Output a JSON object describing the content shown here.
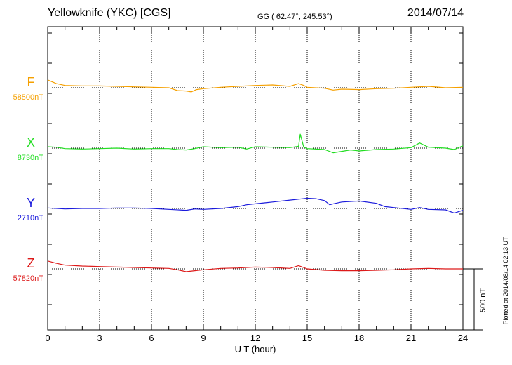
{
  "header": {
    "title": "Yellowknife (YKC)  [CGS]",
    "coords": "GG ( 62.47°, 245.53°)",
    "date": "2014/07/14"
  },
  "footer": {
    "plotted": "Plotted at 2014/08/14 02:13 UT"
  },
  "chart_data": {
    "type": "line",
    "title": "Yellowknife (YKC)  [CGS]",
    "subtitle": "GG ( 62.47°, 245.53°)",
    "date": "2014/07/14",
    "xlabel": "U T (hour)",
    "xlim": [
      0,
      24
    ],
    "xticks": [
      0,
      3,
      6,
      9,
      12,
      15,
      18,
      21,
      24
    ],
    "vertical_grid": true,
    "scale_bar": {
      "label": "500 nT",
      "value_nT": 500
    },
    "colors": {
      "F": "#f5a000",
      "X": "#22dd22",
      "Y": "#1a1adc",
      "Z": "#dd1a1a"
    },
    "series": [
      {
        "name": "F",
        "baseline_label": "58500nT",
        "baseline": 58500,
        "x": [
          0,
          0.5,
          1,
          2,
          3,
          4,
          5,
          6,
          7,
          7.5,
          8,
          8.3,
          8.6,
          9,
          10,
          11,
          12,
          13,
          14,
          14.5,
          14.8,
          15,
          16,
          16.5,
          17,
          18,
          19,
          20,
          21,
          22,
          23,
          24
        ],
        "y": [
          58585,
          58545,
          58525,
          58520,
          58520,
          58515,
          58510,
          58505,
          58500,
          58470,
          58465,
          58455,
          58480,
          58490,
          58505,
          58515,
          58525,
          58530,
          58515,
          58545,
          58525,
          58505,
          58495,
          58475,
          58485,
          58480,
          58490,
          58495,
          58505,
          58515,
          58500,
          58505
        ]
      },
      {
        "name": "X",
        "baseline_label": "8730nT",
        "baseline": 8730,
        "x": [
          0,
          0.5,
          1,
          2,
          3,
          4,
          5,
          6,
          7,
          7.5,
          8,
          8.5,
          9,
          10,
          11,
          11.5,
          12,
          13,
          14,
          14.5,
          14.6,
          14.8,
          15,
          16,
          16.5,
          17,
          17.5,
          18,
          19,
          20,
          21,
          21.5,
          22,
          23,
          23.5,
          24
        ],
        "y": [
          8745,
          8740,
          8725,
          8720,
          8725,
          8730,
          8720,
          8725,
          8725,
          8715,
          8710,
          8725,
          8745,
          8735,
          8740,
          8720,
          8745,
          8740,
          8735,
          8750,
          8880,
          8740,
          8725,
          8715,
          8680,
          8695,
          8710,
          8700,
          8715,
          8720,
          8735,
          8785,
          8740,
          8730,
          8715,
          8755
        ]
      },
      {
        "name": "Y",
        "baseline_label": "2710nT",
        "baseline": 2710,
        "x": [
          0,
          1,
          2,
          3,
          4,
          5,
          6,
          7,
          8,
          8.5,
          9,
          10,
          11,
          11.5,
          12,
          13,
          14,
          14.5,
          15,
          15.5,
          16,
          16.3,
          16.5,
          17,
          18,
          19,
          19.5,
          20,
          21,
          21.5,
          22,
          23,
          23.5,
          24
        ],
        "y": [
          2715,
          2705,
          2710,
          2710,
          2715,
          2715,
          2710,
          2700,
          2690,
          2705,
          2700,
          2710,
          2730,
          2750,
          2760,
          2780,
          2800,
          2810,
          2820,
          2815,
          2795,
          2750,
          2760,
          2780,
          2790,
          2765,
          2730,
          2720,
          2700,
          2720,
          2700,
          2695,
          2660,
          2690
        ]
      },
      {
        "name": "Z",
        "baseline_label": "57820nT",
        "baseline": 57820,
        "x": [
          0,
          0.5,
          1,
          2,
          3,
          4,
          5,
          6,
          7,
          7.5,
          8,
          8.5,
          9,
          10,
          11,
          12,
          13,
          14,
          14.5,
          15,
          16,
          17,
          18,
          19,
          20,
          21,
          22,
          23,
          24
        ],
        "y": [
          57905,
          57880,
          57860,
          57850,
          57845,
          57840,
          57835,
          57830,
          57825,
          57810,
          57790,
          57800,
          57810,
          57825,
          57830,
          57840,
          57835,
          57825,
          57855,
          57820,
          57805,
          57800,
          57800,
          57805,
          57810,
          57820,
          57825,
          57820,
          57820
        ]
      }
    ]
  }
}
